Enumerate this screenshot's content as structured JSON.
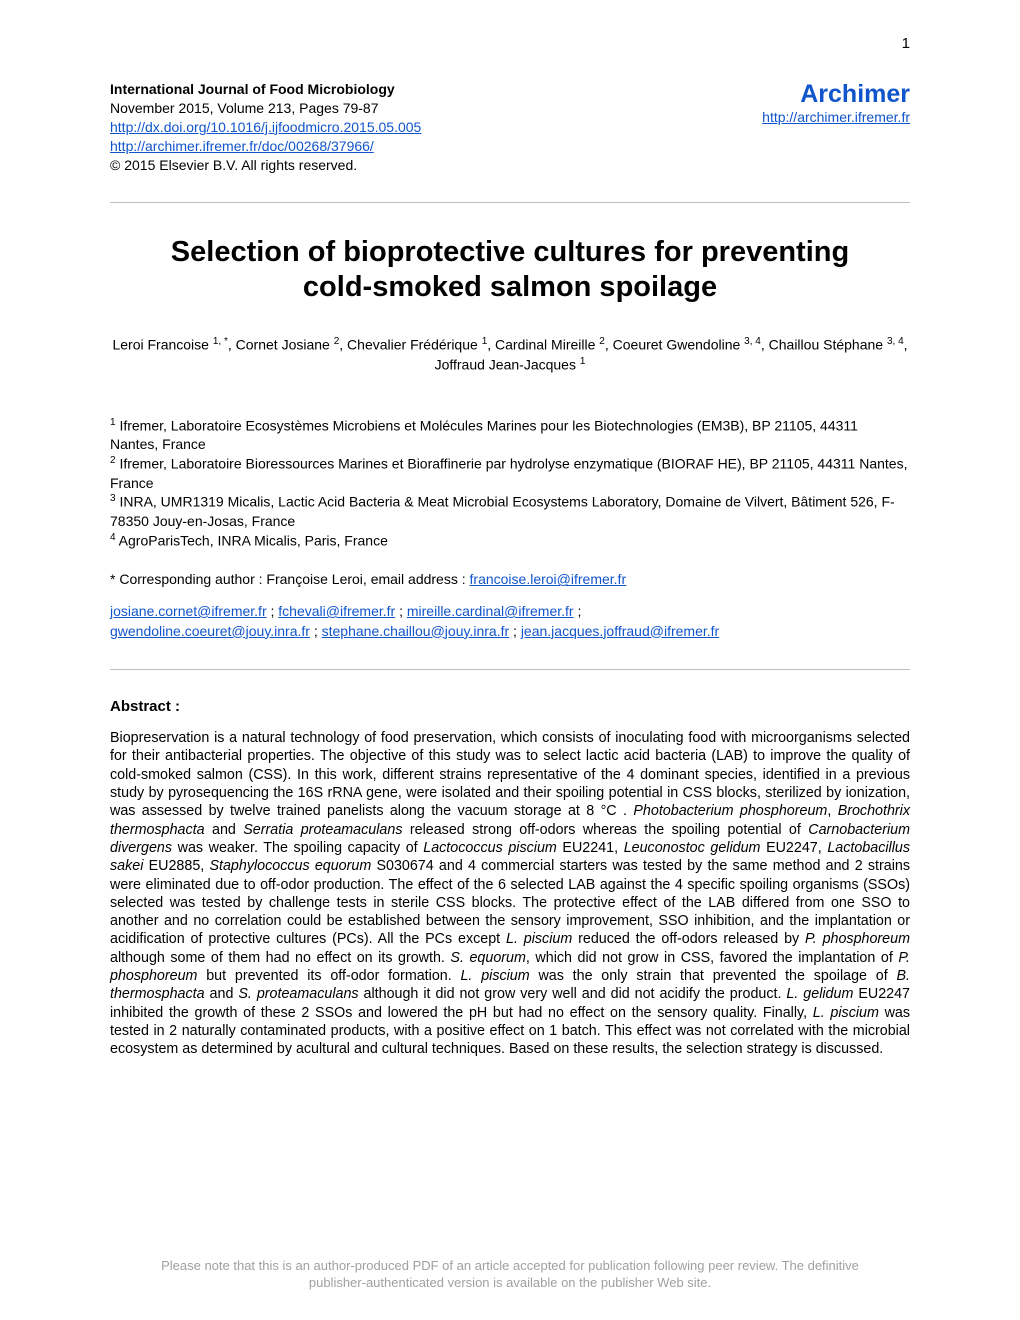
{
  "page_number": "1",
  "header": {
    "journal_title": "International Journal of Food Microbiology",
    "issue_line": "November 2015, Volume 213, Pages 79-87",
    "doi_link": "http://dx.doi.org/10.1016/j.ijfoodmicro.2015.05.005",
    "archimer_doc_link": "http://archimer.ifremer.fr/doc/00268/37966/",
    "copyright": "© 2015 Elsevier B.V. All rights reserved.",
    "archimer_title": "Archimer",
    "archimer_link": "http://archimer.ifremer.fr"
  },
  "title": {
    "line1": "Selection of bioprotective cultures for preventing",
    "line2": "cold-smoked salmon spoilage"
  },
  "authors_html": "Leroi Francoise <sup>1, *</sup>, Cornet Josiane <sup>2</sup>, Chevalier Frédérique <sup>1</sup>, Cardinal Mireille <sup>2</sup>, Coeuret Gwendoline <sup>3, 4</sup>, Chaillou Stéphane <sup>3, 4</sup>, Joffraud Jean-Jacques <sup>1</sup>",
  "affiliations": {
    "a1": "<sup>1</sup> Ifremer, Laboratoire Ecosystèmes Microbiens et Molécules Marines pour les Biotechnologies (EM3B), BP 21105, 44311 Nantes, France",
    "a2": "<sup>2</sup> Ifremer, Laboratoire Bioressources Marines et Bioraffinerie par hydrolyse enzymatique (BIORAF HE), BP 21105, 44311 Nantes, France",
    "a3": "<sup>3</sup> INRA, UMR1319 Micalis, Lactic Acid Bacteria & Meat Microbial Ecosystems Laboratory, Domaine de Vilvert, Bâtiment 526, F-78350 Jouy-en-Josas, France",
    "a4": "<sup>4</sup> AgroParisTech, INRA Micalis, Paris, France"
  },
  "corresponding": {
    "prefix": "* Corresponding author : Françoise Leroi, email address : ",
    "email": "francoise.leroi@ifremer.fr"
  },
  "emails": {
    "e1": "josiane.cornet@ifremer.fr",
    "e2": "fchevali@ifremer.fr",
    "e3": "mireille.cardinal@ifremer.fr",
    "e4": "gwendoline.coeuret@jouy.inra.fr",
    "e5": "stephane.chaillou@jouy.inra.fr",
    "e6": "jean.jacques.joffraud@ifremer.fr"
  },
  "abstract": {
    "heading": "Abstract :",
    "body_html": "Biopreservation is a natural technology of food preservation, which consists of inoculating food with microorganisms selected for their antibacterial properties. The objective of this study was to select lactic acid bacteria (LAB) to improve the quality of cold-smoked salmon (CSS). In this work, different strains representative of the 4 dominant species, identified in a previous study by pyrosequencing the 16S rRNA gene, were isolated and their spoiling potential in CSS blocks, sterilized by ionization, was assessed by twelve trained panelists along the vacuum storage at 8 °C . <span class=\"italic\">Photobacterium phosphoreum</span>, <span class=\"italic\">Brochothrix thermosphacta</span> and <span class=\"italic\">Serratia proteamaculans</span> released strong off-odors whereas the spoiling potential of <span class=\"italic\">Carnobacterium divergens</span> was weaker. The spoiling capacity of <span class=\"italic\">Lactococcus piscium</span> EU2241, <span class=\"italic\">Leuconostoc gelidum</span> EU2247, <span class=\"italic\">Lactobacillus sakei</span> EU2885, <span class=\"italic\">Staphylococcus equorum</span> S030674 and 4 commercial starters was tested by the same method and 2 strains were eliminated due to off-odor production. The effect of the 6 selected LAB against the 4 specific spoiling organisms (SSOs) selected was tested by challenge tests in sterile CSS blocks. The protective effect of the LAB differed from one SSO to another and no correlation could be established between the sensory improvement, SSO inhibition, and the implantation or acidification of protective cultures (PCs). All the PCs except <span class=\"italic\">L. piscium</span> reduced the off-odors released by <span class=\"italic\">P. phosphoreum</span> although some of them had no effect on its growth. <span class=\"italic\">S. equorum</span>, which did not grow in CSS, favored the implantation of <span class=\"italic\">P. phosphoreum</span> but prevented its off-odor formation. <span class=\"italic\">L. piscium</span> was the only strain that prevented the spoilage of <span class=\"italic\">B. thermosphacta</span> and <span class=\"italic\">S. proteamaculans</span> although it did not grow very well and did not acidify the product. <span class=\"italic\">L. gelidum</span> EU2247 inhibited the growth of these 2 SSOs and lowered the pH but had no effect on the sensory quality. Finally, <span class=\"italic\">L. piscium</span> was tested in 2 naturally contaminated products, with a positive effect on 1 batch. This effect was not correlated with the microbial ecosystem as determined by acultural and cultural techniques. Based on these results, the selection strategy is discussed."
  },
  "footer": {
    "line1": "Please note that this is an author-produced PDF of an article accepted for publication following peer review. The definitive",
    "line2": "publisher-authenticated version is available on the publisher Web site."
  }
}
